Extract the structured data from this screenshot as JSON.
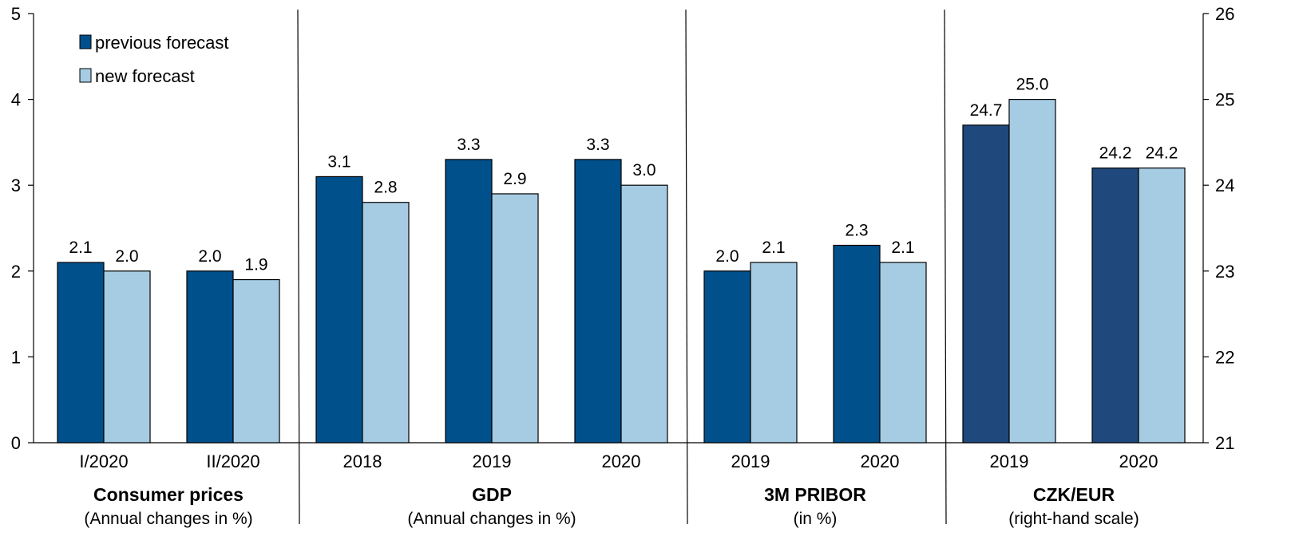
{
  "chart_data": {
    "type": "bar",
    "legend": {
      "position": "top-left",
      "entries": [
        {
          "label": "previous forecast",
          "color": "#00508c"
        },
        {
          "label": "new forecast",
          "color": "#a6cce3"
        }
      ]
    },
    "left_axis": {
      "ylim": [
        0,
        5
      ],
      "ticks": [
        "0",
        "1",
        "2",
        "3",
        "4",
        "5"
      ]
    },
    "right_axis": {
      "ylim": [
        21,
        26
      ],
      "ticks": [
        "21",
        "22",
        "23",
        "24",
        "25",
        "26"
      ]
    },
    "grid": false,
    "groups": [
      {
        "title": "Consumer prices",
        "subtitle": "(Annual changes in %)",
        "axis": "left",
        "categories": [
          "I/2020",
          "II/2020"
        ],
        "series": [
          {
            "name": "previous forecast",
            "values": [
              2.1,
              2.0
            ],
            "labels": [
              "2.1",
              "2.0"
            ]
          },
          {
            "name": "new forecast",
            "values": [
              2.0,
              1.9
            ],
            "labels": [
              "2.0",
              "1.9"
            ]
          }
        ]
      },
      {
        "title": "GDP",
        "subtitle": "(Annual changes in %)",
        "axis": "left",
        "categories": [
          "2018",
          "2019",
          "2020"
        ],
        "series": [
          {
            "name": "previous forecast",
            "values": [
              3.1,
              3.3,
              3.3
            ],
            "labels": [
              "3.1",
              "3.3",
              "3.3"
            ]
          },
          {
            "name": "new forecast",
            "values": [
              2.8,
              2.9,
              3.0
            ],
            "labels": [
              "2.8",
              "2.9",
              "3.0"
            ]
          }
        ]
      },
      {
        "title": "3M PRIBOR",
        "subtitle": "(in %)",
        "axis": "left",
        "categories": [
          "2019",
          "2020"
        ],
        "series": [
          {
            "name": "previous forecast",
            "values": [
              2.0,
              2.3
            ],
            "labels": [
              "2.0",
              "2.3"
            ]
          },
          {
            "name": "new forecast",
            "values": [
              2.1,
              2.1
            ],
            "labels": [
              "2.1",
              "2.1"
            ]
          }
        ]
      },
      {
        "title": "CZK/EUR",
        "subtitle": "(right-hand scale)",
        "axis": "right",
        "categories": [
          "2019",
          "2020"
        ],
        "series": [
          {
            "name": "previous forecast",
            "values": [
              24.7,
              24.2
            ],
            "labels": [
              "24.7",
              "24.2"
            ],
            "color": "#1f497d"
          },
          {
            "name": "new forecast",
            "values": [
              25.0,
              24.2
            ],
            "labels": [
              "25.0",
              "24.2"
            ]
          }
        ]
      }
    ]
  }
}
